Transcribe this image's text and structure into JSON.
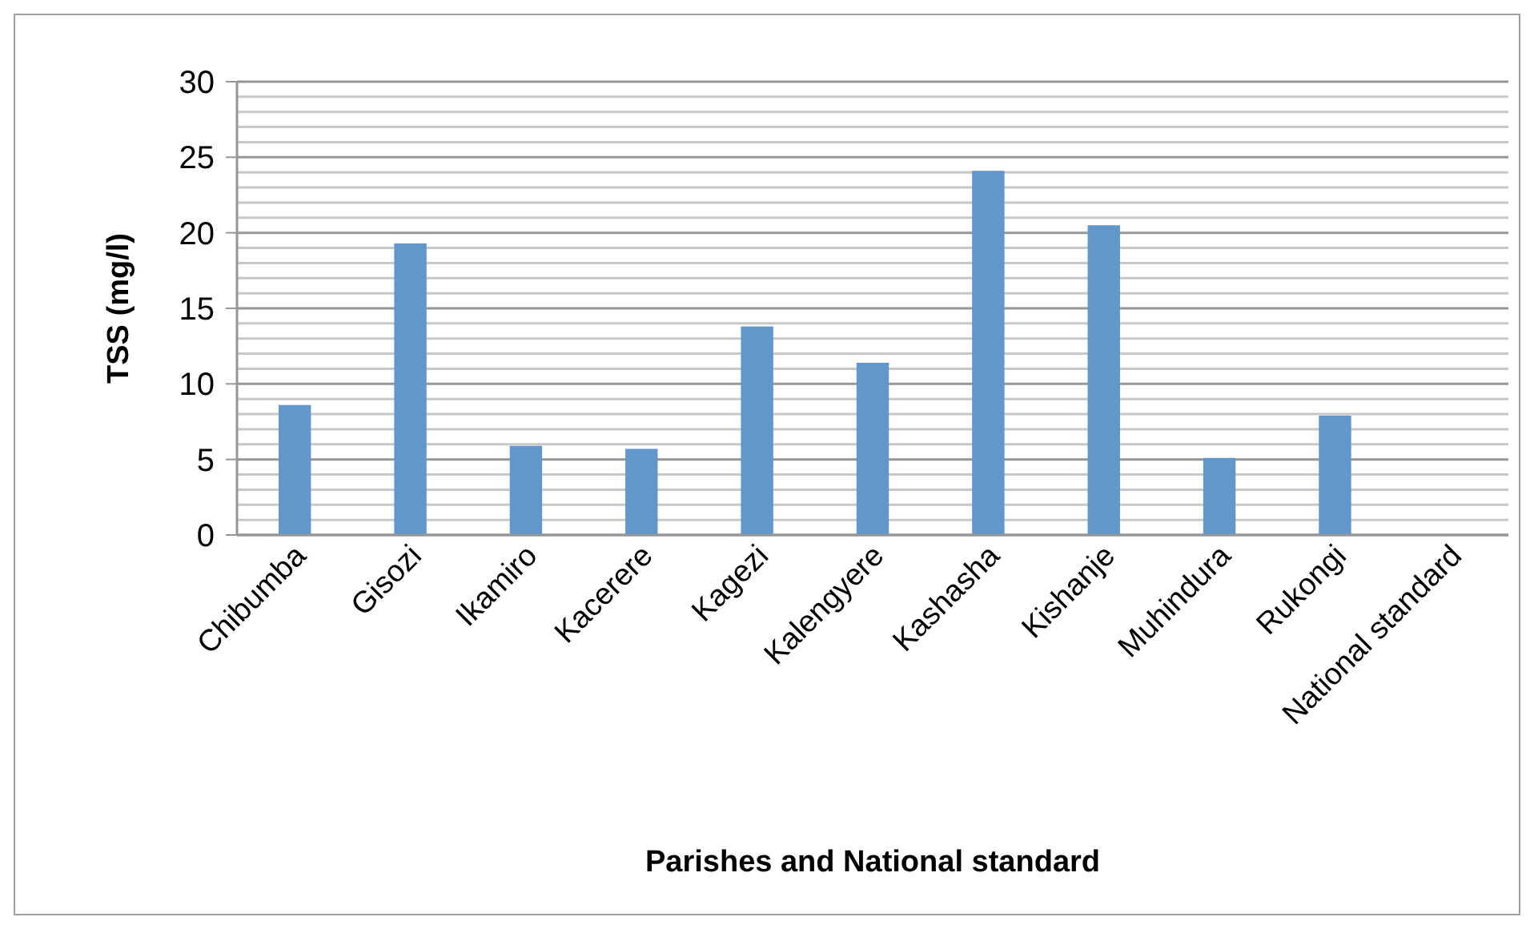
{
  "chart_data": {
    "type": "bar",
    "xlabel": "Parishes and National standard",
    "ylabel": "TSS (mg/l)",
    "categories": [
      "Chibumba",
      "Gisozi",
      "Ikamiro",
      "Kacerere",
      "Kagezi",
      "Kalengyere",
      "Kashasha",
      "Kishanje",
      "Muhindura",
      "Rukongi",
      "National standard"
    ],
    "values": [
      8.6,
      19.3,
      5.9,
      5.7,
      13.8,
      11.4,
      24.1,
      20.5,
      5.1,
      7.9,
      null
    ],
    "color": "#6197cb",
    "ylim": [
      0,
      30
    ],
    "yticks": [
      0,
      {
        "value": 1,
        "label": null
      },
      {
        "value": 2,
        "label": null
      },
      {
        "value": 3,
        "label": null
      },
      {
        "value": 4,
        "label": null
      },
      5,
      {
        "value": 6,
        "label": null
      },
      {
        "value": 7,
        "label": null
      },
      {
        "value": 8,
        "label": null
      },
      {
        "value": 9,
        "label": null
      },
      10,
      {
        "value": 11,
        "label": null
      },
      {
        "value": 12,
        "label": null
      },
      {
        "value": 13,
        "label": null
      },
      {
        "value": 14,
        "label": null
      },
      15,
      {
        "value": 16,
        "label": null
      },
      {
        "value": 17,
        "label": null
      },
      {
        "value": 18,
        "label": null
      },
      {
        "value": 19,
        "label": null
      },
      20,
      {
        "value": 21,
        "label": null
      },
      {
        "value": 22,
        "label": null
      },
      {
        "value": 23,
        "label": null
      },
      {
        "value": 24,
        "label": null
      },
      25,
      {
        "value": 26,
        "label": null
      },
      {
        "value": 27,
        "label": null
      },
      {
        "value": 28,
        "label": null
      },
      {
        "value": 29,
        "label": null
      },
      30
    ],
    "grid": "y"
  }
}
